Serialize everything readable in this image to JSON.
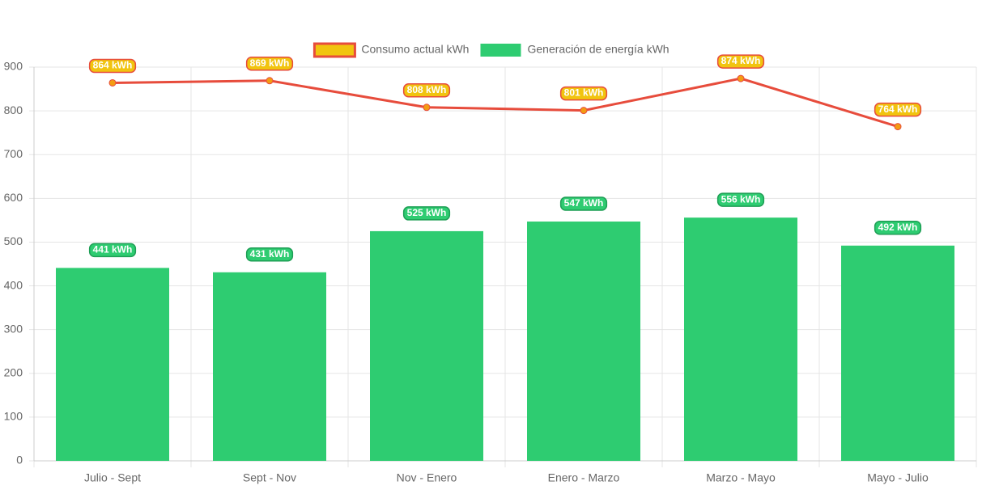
{
  "chart_data": {
    "type": "bar",
    "categories": [
      "Julio - Sept",
      "Sept - Nov",
      "Nov - Enero",
      "Enero - Marzo",
      "Marzo - Mayo",
      "Mayo - Julio"
    ],
    "series": [
      {
        "name": "Consumo actual kWh",
        "type": "line",
        "color": "#e74c3c",
        "point_color": "#f39c12",
        "fill": "#f1c40f",
        "values": [
          864,
          869,
          808,
          801,
          874,
          764
        ],
        "value_labels": [
          "864 kWh",
          "869 kWh",
          "808 kWh",
          "801 kWh",
          "874 kWh",
          "764 kWh"
        ]
      },
      {
        "name": "Generación de energía kWh",
        "type": "bar",
        "color": "#2ecc71",
        "values": [
          441,
          431,
          525,
          547,
          556,
          492
        ],
        "value_labels": [
          "441 kWh",
          "431 kWh",
          "525 kWh",
          "547 kWh",
          "556 kWh",
          "492 kWh"
        ]
      }
    ],
    "ylim": [
      0,
      900
    ],
    "yticks": [
      0,
      100,
      200,
      300,
      400,
      500,
      600,
      700,
      800,
      900
    ],
    "grid": true,
    "legend": "top"
  }
}
